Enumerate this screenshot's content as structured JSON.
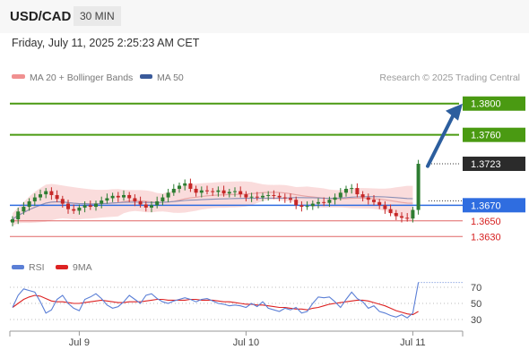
{
  "header": {
    "pair": "USD/CAD",
    "timeframe": "30 MIN",
    "datetime": "Friday, July 11, 2025 2:25:23 AM CET"
  },
  "colors": {
    "resistance": "#4a9a12",
    "support": "#e06666",
    "pivot": "#2f6de0",
    "ma20": "#f09090",
    "ma50": "#3a5a9a",
    "band": "#f9d6d6",
    "candle_up": "#2e7d32",
    "candle_down": "#c62828",
    "arrow": "#2c5e9e",
    "rsi": "#5b7fd6",
    "rsi_ma": "#dd2222"
  },
  "chart_data": [
    {
      "type": "candlestick",
      "title": "USD/CAD",
      "legend": [
        {
          "name": "MA 20 + Bollinger Bands",
          "color_key": "ma20"
        },
        {
          "name": "MA 50",
          "color_key": "ma50"
        }
      ],
      "watermark": "Research © 2025 Trading Central",
      "x_ticks": [
        {
          "label": "Jul 9",
          "index": 12
        },
        {
          "label": "Jul 10",
          "index": 42
        },
        {
          "label": "Jul 11",
          "index": 72
        }
      ],
      "ylim": [
        1.362,
        1.381
      ],
      "levels": [
        {
          "label": "1.3800",
          "value": 1.38,
          "kind": "resistance"
        },
        {
          "label": "1.3760",
          "value": 1.376,
          "kind": "resistance"
        },
        {
          "label": "1.3723",
          "value": 1.3723,
          "kind": "current"
        },
        {
          "label": "1.3670",
          "value": 1.367,
          "kind": "pivot"
        },
        {
          "label": "1.3650",
          "value": 1.365,
          "kind": "support"
        },
        {
          "label": "1.3630",
          "value": 1.363,
          "kind": "support"
        }
      ],
      "closes": [
        1.3652,
        1.3662,
        1.3668,
        1.3675,
        1.368,
        1.3684,
        1.3688,
        1.3683,
        1.3678,
        1.3672,
        1.3665,
        1.3663,
        1.3667,
        1.367,
        1.3668,
        1.3672,
        1.3676,
        1.3679,
        1.3682,
        1.368,
        1.3683,
        1.3679,
        1.3675,
        1.3671,
        1.3667,
        1.367,
        1.3675,
        1.368,
        1.3686,
        1.3691,
        1.3695,
        1.3698,
        1.3691,
        1.3686,
        1.3689,
        1.3688,
        1.3687,
        1.3689,
        1.3685,
        1.3687,
        1.3688,
        1.3684,
        1.368,
        1.3681,
        1.368,
        1.3682,
        1.3683,
        1.3682,
        1.368,
        1.3679,
        1.3677,
        1.367,
        1.3668,
        1.3669,
        1.3672,
        1.3674,
        1.3673,
        1.3677,
        1.368,
        1.3686,
        1.3691,
        1.3692,
        1.3684,
        1.368,
        1.3677,
        1.3674,
        1.367,
        1.3665,
        1.366,
        1.3656,
        1.3654,
        1.3653,
        1.3664,
        1.3723
      ],
      "annotation": "arrow up to 1.3800",
      "grid": false
    },
    {
      "type": "line",
      "title": "RSI",
      "legend": [
        {
          "name": "RSI",
          "color_key": "rsi"
        },
        {
          "name": "9MA",
          "color_key": "rsi_ma"
        }
      ],
      "y_ticks": [
        {
          "label": "70",
          "value": 70
        },
        {
          "label": "50",
          "value": 50
        },
        {
          "label": "30",
          "value": 30
        }
      ],
      "ylim": [
        20,
        80
      ],
      "series": [
        {
          "name": "RSI",
          "values": [
            45,
            60,
            68,
            66,
            64,
            52,
            38,
            42,
            55,
            60,
            50,
            44,
            41,
            55,
            58,
            62,
            56,
            48,
            44,
            46,
            52,
            60,
            55,
            50,
            60,
            62,
            56,
            52,
            50,
            53,
            55,
            57,
            55,
            52,
            55,
            56,
            53,
            50,
            49,
            47,
            48,
            47,
            45,
            50,
            46,
            52,
            44,
            42,
            40,
            44,
            42,
            45,
            38,
            40,
            50,
            58,
            57,
            58,
            52,
            45,
            55,
            64,
            56,
            52,
            44,
            47,
            40,
            38,
            35,
            33,
            36,
            32,
            38,
            76
          ]
        },
        {
          "name": "9MA",
          "values": [
            45,
            50,
            55,
            58,
            60,
            59,
            56,
            53,
            52,
            52,
            51,
            50,
            50,
            51,
            52,
            53,
            54,
            53,
            52,
            51,
            51,
            52,
            52,
            52,
            53,
            54,
            55,
            55,
            54,
            54,
            54,
            54,
            55,
            55,
            54,
            54,
            54,
            53,
            52,
            52,
            51,
            50,
            49,
            49,
            48,
            48,
            47,
            46,
            45,
            45,
            44,
            43,
            43,
            42,
            44,
            45,
            47,
            49,
            50,
            51,
            52,
            53,
            54,
            54,
            53,
            51,
            49,
            47,
            44,
            41,
            39,
            37,
            36,
            40
          ]
        }
      ]
    }
  ]
}
